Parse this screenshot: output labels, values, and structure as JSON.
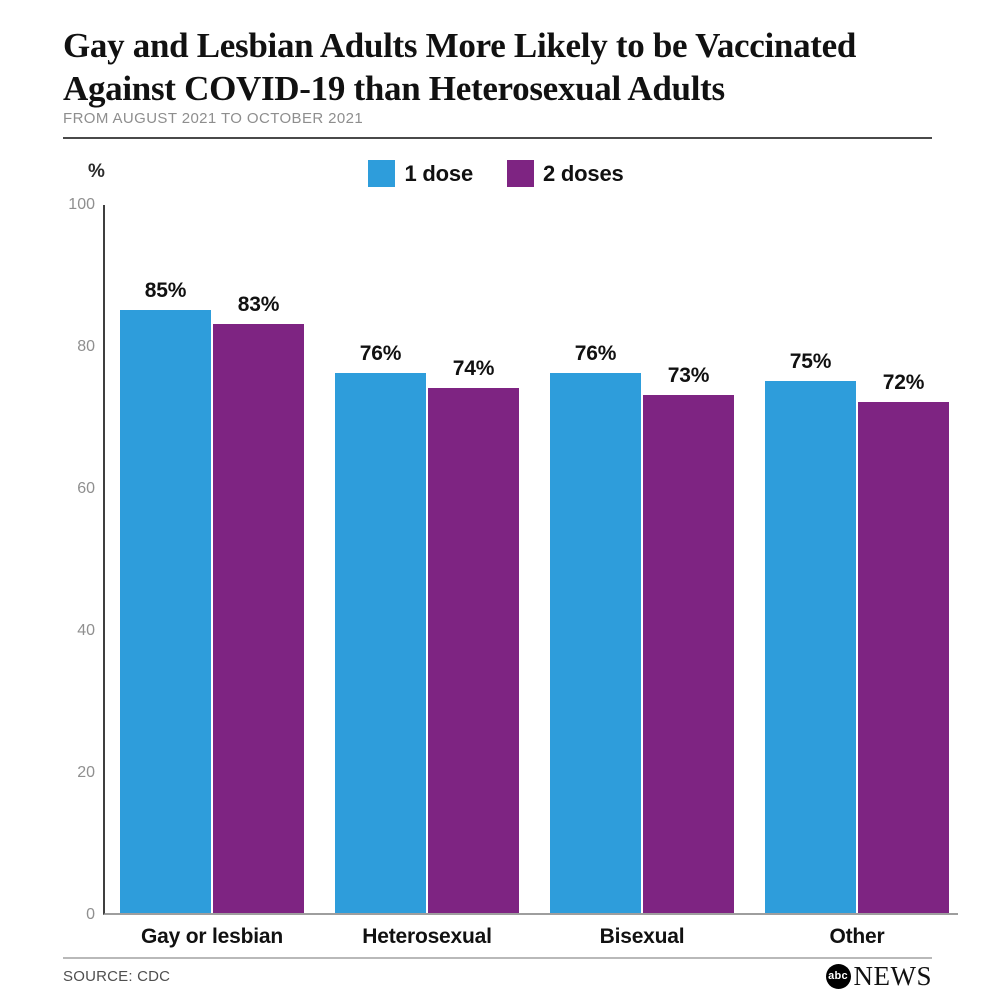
{
  "header": {
    "title_line1": "Gay and Lesbian Adults More Likely to be Vaccinated",
    "title_line2": "Against COVID-19 than Heterosexual Adults",
    "subtitle": "FROM AUGUST 2021 TO OCTOBER 2021"
  },
  "chart_data": {
    "type": "bar",
    "title": "Gay and Lesbian Adults More Likely to be Vaccinated Against COVID-19 than Heterosexual Adults",
    "subtitle": "FROM AUGUST 2021 TO OCTOBER 2021",
    "categories": [
      "Gay or lesbian",
      "Heterosexual",
      "Bisexual",
      "Other"
    ],
    "series": [
      {
        "name": "1 dose",
        "key": "1-dose",
        "color": "#2E9DDB",
        "values": [
          85,
          76,
          76,
          75
        ]
      },
      {
        "name": "2 doses",
        "key": "2-doses",
        "color": "#7E2482",
        "values": [
          83,
          74,
          73,
          72
        ]
      }
    ],
    "value_suffix": "%",
    "ylabel": "%",
    "xlabel": "",
    "ylim": [
      0,
      100
    ],
    "yticks": [
      0,
      20,
      40,
      60,
      80,
      100
    ],
    "grid": false,
    "legend_position": "top-center",
    "axis_color": "#3f3f3f",
    "baseline_color": "#9e9e9e",
    "tick_label_color": "#8f8f8f"
  },
  "footer": {
    "source": "SOURCE: CDC",
    "logo_abc": "abc",
    "logo_news": "NEWS"
  }
}
